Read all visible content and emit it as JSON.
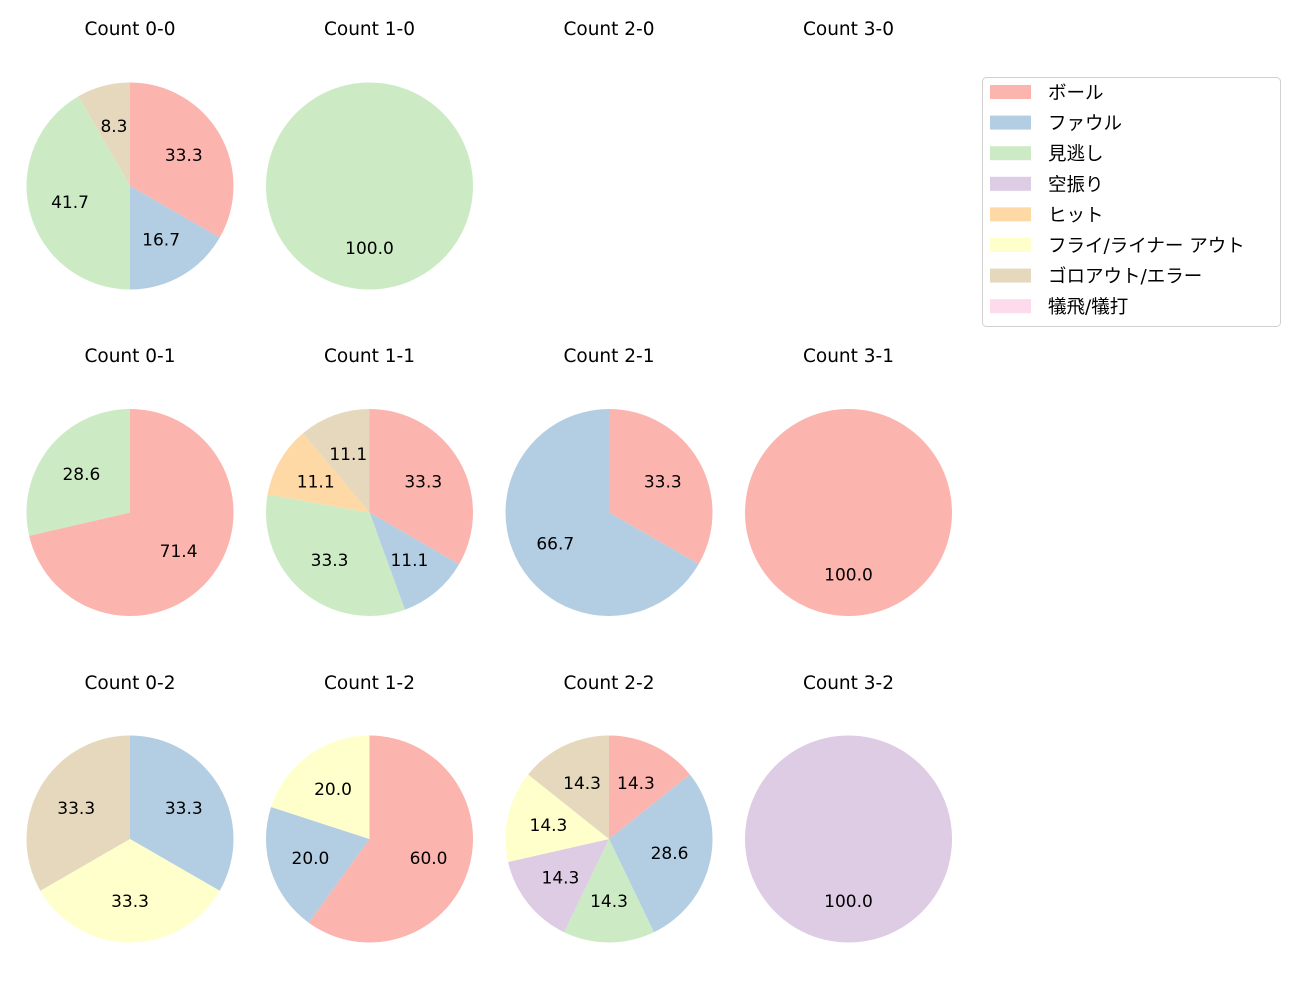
{
  "chart_data": {
    "type": "pie",
    "direction": "clockwise",
    "start_angle_deg": 90,
    "legend": {
      "placement": "top-right",
      "entries": [
        {
          "name": "ボール",
          "color": "#fbb4ae"
        },
        {
          "name": "ファウル",
          "color": "#b3cde3"
        },
        {
          "name": "見逃し",
          "color": "#ccebc5"
        },
        {
          "name": "空振り",
          "color": "#decbe4"
        },
        {
          "name": "ヒット",
          "color": "#fed9a6"
        },
        {
          "name": "フライ/ライナー アウト",
          "color": "#ffffcc"
        },
        {
          "name": "ゴロアウト/エラー",
          "color": "#e5d8bd"
        },
        {
          "name": "犠飛/犠打",
          "color": "#fddaec"
        }
      ]
    },
    "charts": [
      {
        "title": "Count 0-0",
        "row": 0,
        "col": 0,
        "slices": [
          {
            "cat": 0,
            "value": 33.3
          },
          {
            "cat": 1,
            "value": 16.7
          },
          {
            "cat": 2,
            "value": 41.7
          },
          {
            "cat": 6,
            "value": 8.3
          }
        ]
      },
      {
        "title": "Count 1-0",
        "row": 0,
        "col": 1,
        "slices": [
          {
            "cat": 2,
            "value": 100.0
          }
        ]
      },
      {
        "title": "Count 2-0",
        "row": 0,
        "col": 2,
        "slices": []
      },
      {
        "title": "Count 3-0",
        "row": 0,
        "col": 3,
        "slices": []
      },
      {
        "title": "Count 0-1",
        "row": 1,
        "col": 0,
        "slices": [
          {
            "cat": 0,
            "value": 71.4
          },
          {
            "cat": 2,
            "value": 28.6
          }
        ]
      },
      {
        "title": "Count 1-1",
        "row": 1,
        "col": 1,
        "slices": [
          {
            "cat": 0,
            "value": 33.3
          },
          {
            "cat": 1,
            "value": 11.1
          },
          {
            "cat": 2,
            "value": 33.3
          },
          {
            "cat": 4,
            "value": 11.1
          },
          {
            "cat": 6,
            "value": 11.1
          }
        ]
      },
      {
        "title": "Count 2-1",
        "row": 1,
        "col": 2,
        "slices": [
          {
            "cat": 0,
            "value": 33.3
          },
          {
            "cat": 1,
            "value": 66.7
          }
        ]
      },
      {
        "title": "Count 3-1",
        "row": 1,
        "col": 3,
        "slices": [
          {
            "cat": 0,
            "value": 100.0
          }
        ]
      },
      {
        "title": "Count 0-2",
        "row": 2,
        "col": 0,
        "slices": [
          {
            "cat": 1,
            "value": 33.3
          },
          {
            "cat": 5,
            "value": 33.3
          },
          {
            "cat": 6,
            "value": 33.3
          }
        ]
      },
      {
        "title": "Count 1-2",
        "row": 2,
        "col": 1,
        "slices": [
          {
            "cat": 0,
            "value": 60.0
          },
          {
            "cat": 1,
            "value": 20.0
          },
          {
            "cat": 5,
            "value": 20.0
          }
        ]
      },
      {
        "title": "Count 2-2",
        "row": 2,
        "col": 2,
        "slices": [
          {
            "cat": 0,
            "value": 14.3
          },
          {
            "cat": 1,
            "value": 28.6
          },
          {
            "cat": 2,
            "value": 14.3
          },
          {
            "cat": 3,
            "value": 14.3
          },
          {
            "cat": 5,
            "value": 14.3
          },
          {
            "cat": 6,
            "value": 14.3
          }
        ]
      },
      {
        "title": "Count 3-2",
        "row": 2,
        "col": 3,
        "slices": [
          {
            "cat": 3,
            "value": 100.0
          }
        ]
      }
    ]
  }
}
